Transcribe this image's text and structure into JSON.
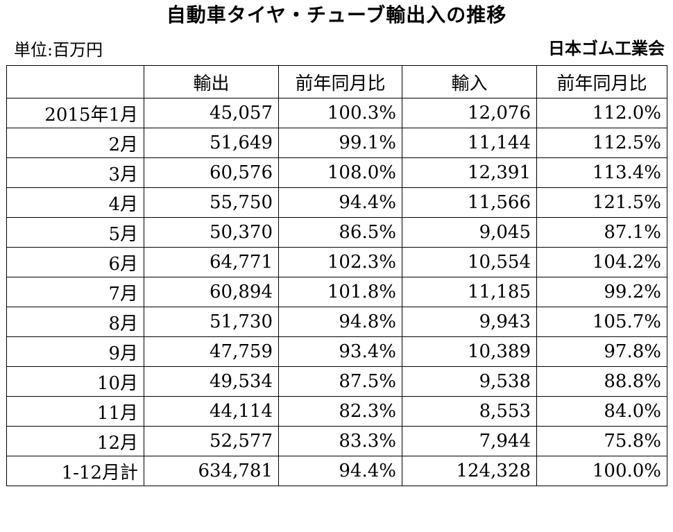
{
  "title": "自動車タイヤ・チューブ輸出入の推移",
  "unit": "単位:百万円",
  "source": "日本ゴム工業会",
  "table": {
    "headers": [
      "",
      "輸出",
      "前年同月比",
      "輸入",
      "前年同月比"
    ],
    "rows": [
      [
        "2015年1月",
        "45,057",
        "100.3%",
        "12,076",
        "112.0%"
      ],
      [
        "2月",
        "51,649",
        "99.1%",
        "11,144",
        "112.5%"
      ],
      [
        "3月",
        "60,576",
        "108.0%",
        "12,391",
        "113.4%"
      ],
      [
        "4月",
        "55,750",
        "94.4%",
        "11,566",
        "121.5%"
      ],
      [
        "5月",
        "50,370",
        "86.5%",
        "9,045",
        "87.1%"
      ],
      [
        "6月",
        "64,771",
        "102.3%",
        "10,554",
        "104.2%"
      ],
      [
        "7月",
        "60,894",
        "101.8%",
        "11,185",
        "99.2%"
      ],
      [
        "8月",
        "51,730",
        "94.8%",
        "9,943",
        "105.7%"
      ],
      [
        "9月",
        "47,759",
        "93.4%",
        "10,389",
        "97.8%"
      ],
      [
        "10月",
        "49,534",
        "87.5%",
        "9,538",
        "88.8%"
      ],
      [
        "11月",
        "44,114",
        "82.3%",
        "8,553",
        "84.0%"
      ],
      [
        "12月",
        "52,577",
        "83.3%",
        "7,944",
        "75.8%"
      ],
      [
        "1-12月計",
        "634,781",
        "94.4%",
        "124,328",
        "100.0%"
      ]
    ]
  }
}
